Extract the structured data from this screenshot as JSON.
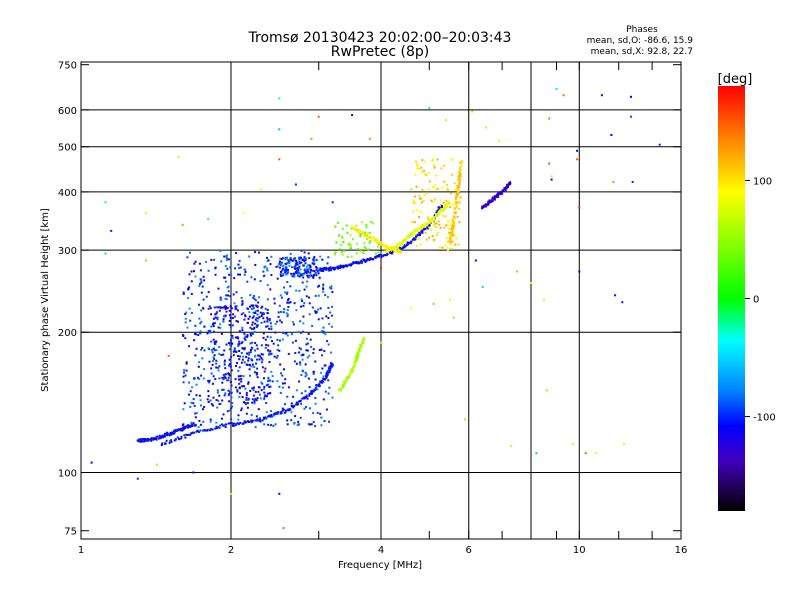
{
  "chart_data": {
    "type": "scatter",
    "title": "Tromsø 20130423 20:02:00–20:03:43",
    "subtitle": "RwPretec (8p)",
    "xlabel": "Frequency [MHz]",
    "ylabel": "Stationary phase Virtual Height [km]",
    "x_scale": "log",
    "y_scale": "log",
    "xlim": [
      1,
      16
    ],
    "ylim": [
      72,
      760
    ],
    "x_ticks": [
      1,
      2,
      4,
      6,
      10,
      16
    ],
    "x_tick_labels": [
      "1",
      "2",
      "4",
      "6",
      "10",
      "16"
    ],
    "x_minor_ticks": [
      3,
      5,
      7,
      8,
      9,
      12,
      14
    ],
    "x_gridlines": [
      2,
      4,
      6,
      8,
      10
    ],
    "y_ticks": [
      75,
      100,
      200,
      300,
      400,
      500,
      600,
      750
    ],
    "y_tick_labels": [
      "75",
      "100",
      "200",
      "300",
      "400",
      "500",
      "600",
      "750"
    ],
    "y_gridlines": [
      100,
      200,
      300,
      400,
      500,
      600
    ],
    "legend_title": "Phases",
    "legend_line1": "mean, sd,O: -86.6, 15.9",
    "legend_line2": "mean, sd,X:  92.8, 22.7",
    "colorbar": {
      "label": "[deg]",
      "range": [
        -180,
        180
      ],
      "ticks": [
        100,
        0,
        -100
      ],
      "tick_labels": [
        "100",
        "0",
        "-100"
      ],
      "colors": [
        "#ff0000",
        "#ff7f00",
        "#ffff00",
        "#7fff00",
        "#00ff00",
        "#00ffff",
        "#007fff",
        "#0000ff",
        "#3f00bf",
        "#1e0050",
        "#000000"
      ]
    },
    "traces": [
      {
        "name": "O-mode F1 trace",
        "phase": -105,
        "x": [
          1.45,
          1.7,
          2.0,
          2.3,
          2.6,
          2.9,
          3.1,
          3.2
        ],
        "y": [
          115,
          122,
          127,
          130,
          136,
          148,
          160,
          172
        ]
      },
      {
        "name": "O-mode low trace",
        "phase": -110,
        "x": [
          1.3,
          1.4,
          1.5,
          1.6,
          1.7
        ],
        "y": [
          117,
          118,
          121,
          124,
          127
        ]
      },
      {
        "name": "O-mode F2 trace",
        "phase": -110,
        "x": [
          3.0,
          3.2,
          3.5,
          3.8,
          4.2,
          4.6,
          5.0,
          5.3
        ],
        "y": [
          272,
          274,
          280,
          287,
          296,
          312,
          340,
          375
        ]
      },
      {
        "name": "X-mode F2 trace",
        "phase": 80,
        "x": [
          4.1,
          4.4,
          4.7,
          5.0,
          5.3,
          5.5
        ],
        "y": [
          298,
          310,
          330,
          345,
          365,
          380
        ]
      },
      {
        "name": "X-mode F2 cusp",
        "phase": 110,
        "x": [
          5.5,
          5.6,
          5.7,
          5.8
        ],
        "y": [
          310,
          345,
          400,
          470
        ]
      },
      {
        "name": "X-mode spread",
        "phase": 60,
        "x": [
          3.3,
          3.5,
          3.6,
          3.7
        ],
        "y": [
          150,
          165,
          180,
          195
        ]
      },
      {
        "name": "X-mode low F2",
        "phase": 95,
        "x": [
          3.5,
          3.8,
          4.1,
          4.4
        ],
        "y": [
          335,
          320,
          305,
          298
        ]
      },
      {
        "name": "high trace",
        "phase": -130,
        "x": [
          6.4,
          6.7,
          7.0,
          7.3
        ],
        "y": [
          370,
          385,
          400,
          420
        ]
      }
    ],
    "clouds": [
      {
        "name": "spread F cloud",
        "xrange": [
          1.6,
          3.2
        ],
        "yrange": [
          125,
          300
        ],
        "phase": -95,
        "count": 650
      },
      {
        "name": "inner cloud",
        "xrange": [
          1.8,
          2.4
        ],
        "yrange": [
          140,
          230
        ],
        "phase": -110,
        "count": 300
      },
      {
        "name": "upper band",
        "xrange": [
          2.5,
          3.0
        ],
        "yrange": [
          262,
          290
        ],
        "phase": -100,
        "count": 140
      },
      {
        "name": "x-mode cloud",
        "xrange": [
          4.6,
          5.8
        ],
        "yrange": [
          300,
          470
        ],
        "phase": 100,
        "count": 150
      },
      {
        "name": "mid cloud",
        "xrange": [
          3.2,
          4.0
        ],
        "yrange": [
          290,
          345
        ],
        "phase": 40,
        "count": 60
      }
    ],
    "scattered_points": [
      {
        "x": 1.05,
        "y": 105,
        "phase": -110
      },
      {
        "x": 1.12,
        "y": 380,
        "phase": -20
      },
      {
        "x": 1.12,
        "y": 295,
        "phase": -50
      },
      {
        "x": 1.15,
        "y": 330,
        "phase": -100
      },
      {
        "x": 1.3,
        "y": 97,
        "phase": -100
      },
      {
        "x": 1.35,
        "y": 360,
        "phase": 100
      },
      {
        "x": 1.35,
        "y": 285,
        "phase": 120
      },
      {
        "x": 1.42,
        "y": 104,
        "phase": 110
      },
      {
        "x": 1.5,
        "y": 178,
        "phase": 150
      },
      {
        "x": 1.57,
        "y": 475,
        "phase": 100
      },
      {
        "x": 1.6,
        "y": 340,
        "phase": 130
      },
      {
        "x": 1.68,
        "y": 100,
        "phase": -100
      },
      {
        "x": 1.8,
        "y": 350,
        "phase": -30
      },
      {
        "x": 2.0,
        "y": 90,
        "phase": 100
      },
      {
        "x": 2.12,
        "y": 360,
        "phase": 90
      },
      {
        "x": 2.3,
        "y": 405,
        "phase": 80
      },
      {
        "x": 2.4,
        "y": 280,
        "phase": -120
      },
      {
        "x": 2.5,
        "y": 635,
        "phase": -30
      },
      {
        "x": 2.5,
        "y": 545,
        "phase": -60
      },
      {
        "x": 2.5,
        "y": 470,
        "phase": 150
      },
      {
        "x": 2.5,
        "y": 90,
        "phase": -110
      },
      {
        "x": 2.55,
        "y": 76,
        "phase": -60
      },
      {
        "x": 2.7,
        "y": 415,
        "phase": -100
      },
      {
        "x": 2.9,
        "y": 520,
        "phase": 130
      },
      {
        "x": 3.0,
        "y": 580,
        "phase": 150
      },
      {
        "x": 3.2,
        "y": 380,
        "phase": -100
      },
      {
        "x": 3.5,
        "y": 585,
        "phase": -110
      },
      {
        "x": 3.8,
        "y": 520,
        "phase": 130
      },
      {
        "x": 4.0,
        "y": 275,
        "phase": 170
      },
      {
        "x": 4.0,
        "y": 190,
        "phase": 100
      },
      {
        "x": 4.6,
        "y": 225,
        "phase": 90
      },
      {
        "x": 5.0,
        "y": 605,
        "phase": -20
      },
      {
        "x": 5.1,
        "y": 230,
        "phase": 120
      },
      {
        "x": 5.4,
        "y": 570,
        "phase": 60
      },
      {
        "x": 5.5,
        "y": 235,
        "phase": 80
      },
      {
        "x": 5.6,
        "y": 215,
        "phase": 110
      },
      {
        "x": 5.9,
        "y": 130,
        "phase": 110
      },
      {
        "x": 6.1,
        "y": 595,
        "phase": 110
      },
      {
        "x": 6.2,
        "y": 285,
        "phase": -110
      },
      {
        "x": 6.4,
        "y": 250,
        "phase": -50
      },
      {
        "x": 6.5,
        "y": 550,
        "phase": 100
      },
      {
        "x": 6.9,
        "y": 515,
        "phase": 80
      },
      {
        "x": 7.3,
        "y": 114,
        "phase": 100
      },
      {
        "x": 7.5,
        "y": 270,
        "phase": 120
      },
      {
        "x": 8.0,
        "y": 255,
        "phase": 70
      },
      {
        "x": 8.2,
        "y": 110,
        "phase": -60
      },
      {
        "x": 8.5,
        "y": 235,
        "phase": 100
      },
      {
        "x": 8.6,
        "y": 150,
        "phase": 110
      },
      {
        "x": 8.7,
        "y": 575,
        "phase": 140
      },
      {
        "x": 8.8,
        "y": 432,
        "phase": 100
      },
      {
        "x": 8.8,
        "y": 425,
        "phase": -110
      },
      {
        "x": 8.7,
        "y": 460,
        "phase": 150
      },
      {
        "x": 9.0,
        "y": 665,
        "phase": -20
      },
      {
        "x": 9.3,
        "y": 645,
        "phase": 140
      },
      {
        "x": 9.7,
        "y": 115,
        "phase": 100
      },
      {
        "x": 9.9,
        "y": 490,
        "phase": -120
      },
      {
        "x": 9.9,
        "y": 470,
        "phase": 150
      },
      {
        "x": 10.0,
        "y": 370,
        "phase": 170
      },
      {
        "x": 10.0,
        "y": 270,
        "phase": -110
      },
      {
        "x": 10.3,
        "y": 110,
        "phase": 150
      },
      {
        "x": 10.8,
        "y": 110,
        "phase": 80
      },
      {
        "x": 11.1,
        "y": 645,
        "phase": -130
      },
      {
        "x": 11.6,
        "y": 530,
        "phase": -110
      },
      {
        "x": 11.7,
        "y": 420,
        "phase": 130
      },
      {
        "x": 11.8,
        "y": 240,
        "phase": -110
      },
      {
        "x": 12.2,
        "y": 232,
        "phase": -130
      },
      {
        "x": 12.3,
        "y": 115,
        "phase": 100
      },
      {
        "x": 12.7,
        "y": 640,
        "phase": -110
      },
      {
        "x": 12.7,
        "y": 580,
        "phase": -90
      },
      {
        "x": 12.8,
        "y": 420,
        "phase": -100
      },
      {
        "x": 14.5,
        "y": 505,
        "phase": -100
      }
    ]
  }
}
